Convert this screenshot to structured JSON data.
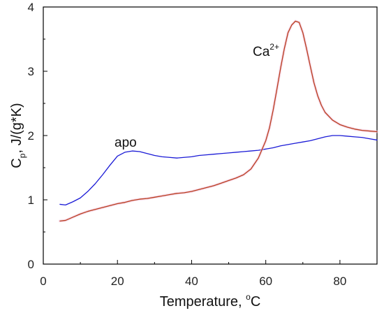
{
  "chart_data": {
    "type": "line",
    "xlabel": "Temperature, ",
    "xlabel_unit": "C",
    "xlabel_sup": "o",
    "ylabel_main": "C",
    "ylabel_sub": "p",
    "ylabel_rest": ", J/(g*K)",
    "xlim": [
      0,
      90
    ],
    "ylim": [
      0,
      4
    ],
    "xticks": [
      "0",
      "20",
      "40",
      "60",
      "80"
    ],
    "yticks": [
      "0",
      "1",
      "2",
      "3",
      "4"
    ],
    "grid": false,
    "annotations": [
      {
        "text": "apo",
        "sup": ""
      },
      {
        "text": "Ca",
        "sup": "2+"
      }
    ],
    "series": [
      {
        "color": "#1a1ad6",
        "x": [
          4.5,
          6,
          8,
          10,
          12,
          14,
          16,
          18,
          20,
          22,
          24,
          26,
          28,
          30,
          32,
          34,
          36,
          38,
          40,
          42,
          44,
          46,
          48,
          50,
          52,
          54,
          56,
          58,
          60,
          62,
          64,
          66,
          68,
          70,
          72,
          74,
          76,
          78,
          80,
          82,
          84,
          86,
          88,
          90
        ],
        "y": [
          0.93,
          0.92,
          0.97,
          1.03,
          1.13,
          1.25,
          1.39,
          1.54,
          1.68,
          1.74,
          1.76,
          1.75,
          1.72,
          1.69,
          1.67,
          1.66,
          1.65,
          1.66,
          1.67,
          1.69,
          1.7,
          1.71,
          1.72,
          1.73,
          1.74,
          1.75,
          1.76,
          1.77,
          1.79,
          1.81,
          1.84,
          1.86,
          1.88,
          1.9,
          1.92,
          1.95,
          1.98,
          2.0,
          2.0,
          1.99,
          1.98,
          1.97,
          1.95,
          1.93
        ]
      },
      {
        "color": "#b83a1c",
        "x": [
          4.5,
          6,
          8,
          10,
          12,
          14,
          16,
          18,
          20,
          22,
          24,
          26,
          28,
          30,
          32,
          34,
          36,
          38,
          40,
          42,
          44,
          46,
          48,
          50,
          52,
          54,
          56,
          58,
          60,
          61,
          62,
          63,
          64,
          65,
          66,
          67,
          68,
          69,
          70,
          71,
          72,
          73,
          74,
          75,
          76,
          78,
          80,
          82,
          84,
          86,
          88,
          90
        ],
        "y": [
          0.67,
          0.68,
          0.73,
          0.78,
          0.82,
          0.85,
          0.88,
          0.91,
          0.94,
          0.96,
          0.99,
          1.01,
          1.02,
          1.04,
          1.06,
          1.08,
          1.1,
          1.11,
          1.13,
          1.16,
          1.19,
          1.22,
          1.26,
          1.3,
          1.34,
          1.39,
          1.48,
          1.65,
          1.92,
          2.12,
          2.4,
          2.72,
          3.05,
          3.35,
          3.6,
          3.72,
          3.78,
          3.76,
          3.6,
          3.35,
          3.08,
          2.82,
          2.62,
          2.47,
          2.36,
          2.24,
          2.17,
          2.13,
          2.1,
          2.08,
          2.07,
          2.06
        ]
      }
    ]
  }
}
